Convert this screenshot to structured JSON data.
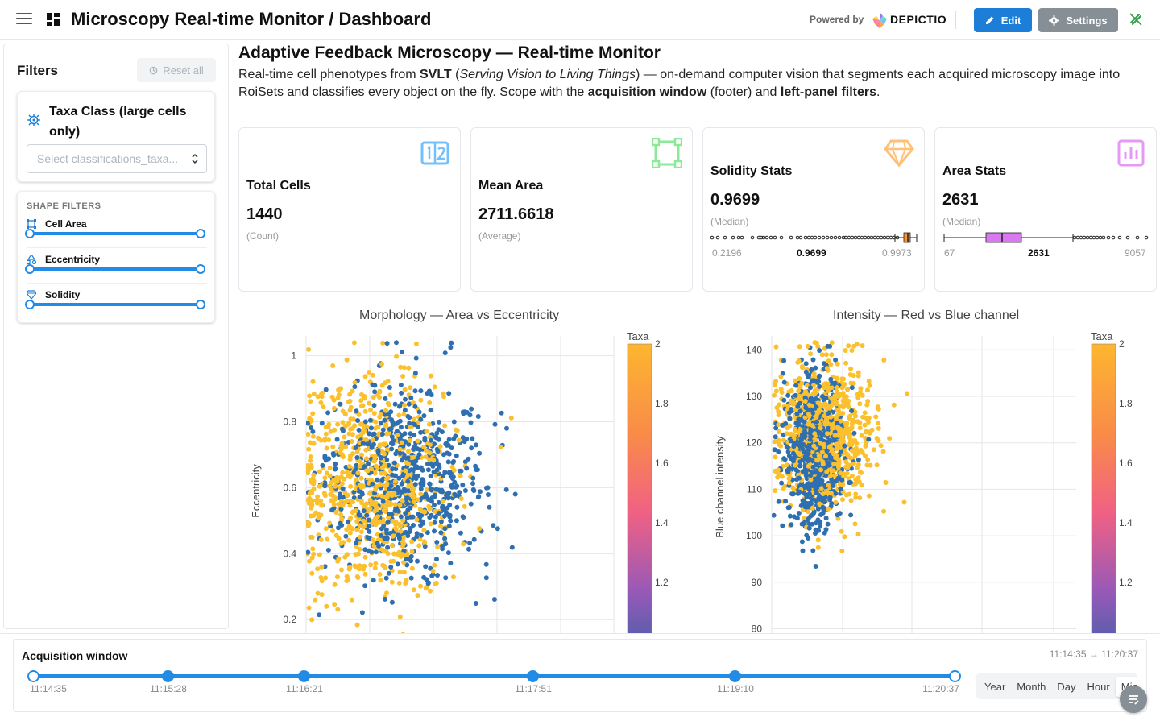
{
  "header": {
    "title": "Microscopy Real-time Monitor / Dashboard",
    "powered_by": "Powered by",
    "brand": "DEPICTIO",
    "edit_label": "Edit",
    "settings_label": "Settings"
  },
  "sidebar": {
    "title": "Filters",
    "reset_label": "Reset all",
    "taxa_filter": {
      "label": "Taxa Class (large cells only)",
      "placeholder": "Select classifications_taxa..."
    },
    "shape_filters": {
      "title": "SHAPE FILTERS",
      "items": [
        {
          "label": "Cell Area",
          "icon": "bounding-box-icon",
          "range": [
            0,
            1
          ]
        },
        {
          "label": "Eccentricity",
          "icon": "shapes-icon",
          "range": [
            0,
            1
          ]
        },
        {
          "label": "Solidity",
          "icon": "diamond-icon",
          "range": [
            0,
            1
          ]
        }
      ]
    }
  },
  "main": {
    "title": "Adaptive Feedback Microscopy — Real-time Monitor",
    "desc": {
      "p1": "Real-time cell phenotypes from ",
      "b1": "SVLT",
      "p2": " (",
      "i1": "Serving Vision to Living Things",
      "p3": ") — on-demand computer vision that segments each acquired microscopy image into RoiSets and classifies every object on the fly. Scope with the ",
      "b2": "acquisition window",
      "p4": " (footer) and ",
      "b3": "left-panel filters",
      "p5": "."
    }
  },
  "kpis": [
    {
      "title": "Total Cells",
      "value": "1440",
      "sub": "(Count)",
      "icon": "counter-icon",
      "color": "#74c0fc"
    },
    {
      "title": "Mean Area",
      "value": "2711.6618",
      "sub": "(Average)",
      "icon": "frame-icon",
      "color": "#8ce99a"
    },
    {
      "title": "Solidity Stats",
      "value": "0.9699",
      "sub": "(Median)",
      "icon": "diamond-icon",
      "color": "#ffc078",
      "box": {
        "min": "0.2196",
        "median": "0.9699",
        "max": "0.9973",
        "color": "#ff922b"
      }
    },
    {
      "title": "Area Stats",
      "value": "2631",
      "sub": "(Median)",
      "icon": "chart-bar-icon",
      "color": "#e599f7",
      "box": {
        "min": "67",
        "median": "2631",
        "max": "9057",
        "color": "#da77f2"
      }
    }
  ],
  "chart_data": [
    {
      "type": "scatter",
      "title": "Morphology — Area vs Eccentricity",
      "xlabel": "",
      "ylabel": "Eccentricity",
      "ylim": [
        0.12,
        1.06
      ],
      "xlim": [
        0,
        10000
      ],
      "yticks": [
        "1",
        "0.8",
        "0.6",
        "0.4",
        "0.2"
      ],
      "colorbar": {
        "title": "Taxa",
        "ticks": [
          "2",
          "1.8",
          "1.6",
          "1.4",
          "1.2"
        ],
        "range": [
          1,
          2
        ]
      },
      "series": [
        {
          "taxa": 1,
          "color": "#2f6fb0",
          "center": [
            3200,
            0.62
          ],
          "spread": [
            1300,
            0.14
          ],
          "count": 700
        },
        {
          "taxa": 2,
          "color": "#fbc02d",
          "center": [
            2100,
            0.6
          ],
          "spread": [
            1300,
            0.17
          ],
          "count": 740
        }
      ]
    },
    {
      "type": "scatter",
      "title": "Intensity — Red vs Blue channel",
      "xlabel": "",
      "ylabel": "Blue channel intensity",
      "ylim": [
        78,
        143
      ],
      "xlim": [
        0,
        100
      ],
      "yticks": [
        "140",
        "130",
        "120",
        "110",
        "100",
        "90",
        "80"
      ],
      "colorbar": {
        "title": "Taxa",
        "ticks": [
          "2",
          "1.8",
          "1.6",
          "1.4",
          "1.2"
        ],
        "range": [
          1,
          2
        ]
      },
      "series": [
        {
          "taxa": 1,
          "color": "#2f6fb0",
          "center": [
            14,
            118
          ],
          "spread": [
            5,
            8
          ],
          "count": 700
        },
        {
          "taxa": 2,
          "color": "#fbc02d",
          "center": [
            18,
            121
          ],
          "spread": [
            8,
            8
          ],
          "count": 740
        }
      ]
    }
  ],
  "footer": {
    "title": "Acquisition window",
    "range": "11:14:35 → 11:20:37",
    "ticks": [
      "11:14:35",
      "11:15:28",
      "11:16:21",
      "11:17:51",
      "11:19:10",
      "11:20:37"
    ],
    "granularity": [
      "Year",
      "Month",
      "Day",
      "Hour",
      "Min"
    ],
    "active": "Min"
  },
  "colors": {
    "primary": "#1c7ed6",
    "secondary": "#868e96"
  }
}
